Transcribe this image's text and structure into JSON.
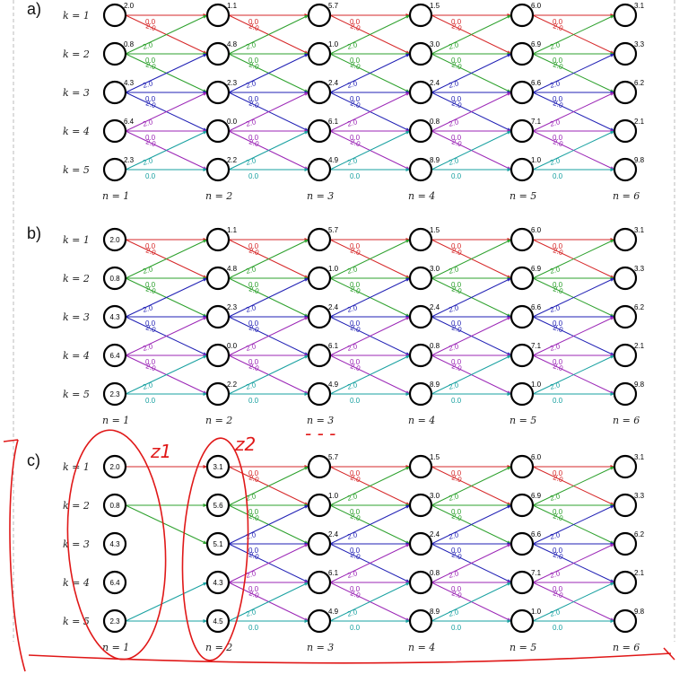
{
  "panels": [
    {
      "label": "a)",
      "k_labels": [
        "k = 1",
        "k = 2",
        "k = 3",
        "k = 4",
        "k = 5"
      ],
      "n_labels": [
        "n = 1",
        "n = 2",
        "n = 3",
        "n = 4",
        "n = 5",
        "n = 6"
      ],
      "inside_values": [],
      "columns": [
        [
          "2.0",
          "0.8",
          "4.3",
          "6.4",
          "2.3"
        ],
        [
          "1.1",
          "4.8",
          "2.3",
          "0.0",
          "2.2"
        ],
        [
          "5.7",
          "1.0",
          "2.4",
          "6.1",
          "4.9"
        ],
        [
          "1.5",
          "3.0",
          "2.4",
          "0.8",
          "8.9"
        ],
        [
          "6.0",
          "6.9",
          "6.6",
          "7.1",
          "1.0"
        ],
        [
          "3.1",
          "3.3",
          "6.2",
          "2.1",
          "9.8"
        ]
      ]
    },
    {
      "label": "b)",
      "k_labels": [
        "k = 1",
        "k = 2",
        "k = 3",
        "k = 4",
        "k = 5"
      ],
      "n_labels": [
        "n = 1",
        "n = 2",
        "n = 3",
        "n = 4",
        "n = 5",
        "n = 6"
      ],
      "inside_values": [
        "2.0",
        "0.8",
        "4.3",
        "6.4",
        "2.3"
      ],
      "columns": [
        [],
        [
          "1.1",
          "4.8",
          "2.3",
          "0.0",
          "2.2"
        ],
        [
          "5.7",
          "1.0",
          "2.4",
          "6.1",
          "4.9"
        ],
        [
          "1.5",
          "3.0",
          "2.4",
          "0.8",
          "8.9"
        ],
        [
          "6.0",
          "6.9",
          "6.6",
          "7.1",
          "1.0"
        ],
        [
          "3.1",
          "3.3",
          "6.2",
          "2.1",
          "9.8"
        ]
      ]
    },
    {
      "label": "c)",
      "k_labels": [
        "k = 1",
        "k = 2",
        "k = 3",
        "k = 4",
        "k = 5"
      ],
      "n_labels": [
        "n = 1",
        "n = 2",
        "n = 3",
        "n = 4",
        "n = 5",
        "n = 6"
      ],
      "inside_values": [
        "2.0",
        "0.8",
        "4.3",
        "6.4",
        "2.3"
      ],
      "inside_values_n2": [
        "3.1",
        "5.6",
        "5.1",
        "4.3",
        "4.5"
      ],
      "columns": [
        [],
        [],
        [
          "5.7",
          "1.0",
          "2.4",
          "6.1",
          "4.9"
        ],
        [
          "1.5",
          "3.0",
          "2.4",
          "0.8",
          "8.9"
        ],
        [
          "6.0",
          "6.9",
          "6.6",
          "7.1",
          "1.0"
        ],
        [
          "3.1",
          "3.3",
          "6.2",
          "2.1",
          "9.8"
        ]
      ]
    }
  ],
  "edge_labels": {
    "straight": "0.0",
    "diagonal": "2.0"
  },
  "colors": {
    "row1": "#d62728",
    "row2": "#2ca02c",
    "row3": "#1f1fb4",
    "row4": "#9b26b6",
    "row5": "#17a0a0",
    "annotation": "#e01818"
  },
  "annotations": {
    "z1": "z1",
    "z2": "z2",
    "dots": "- - -"
  }
}
